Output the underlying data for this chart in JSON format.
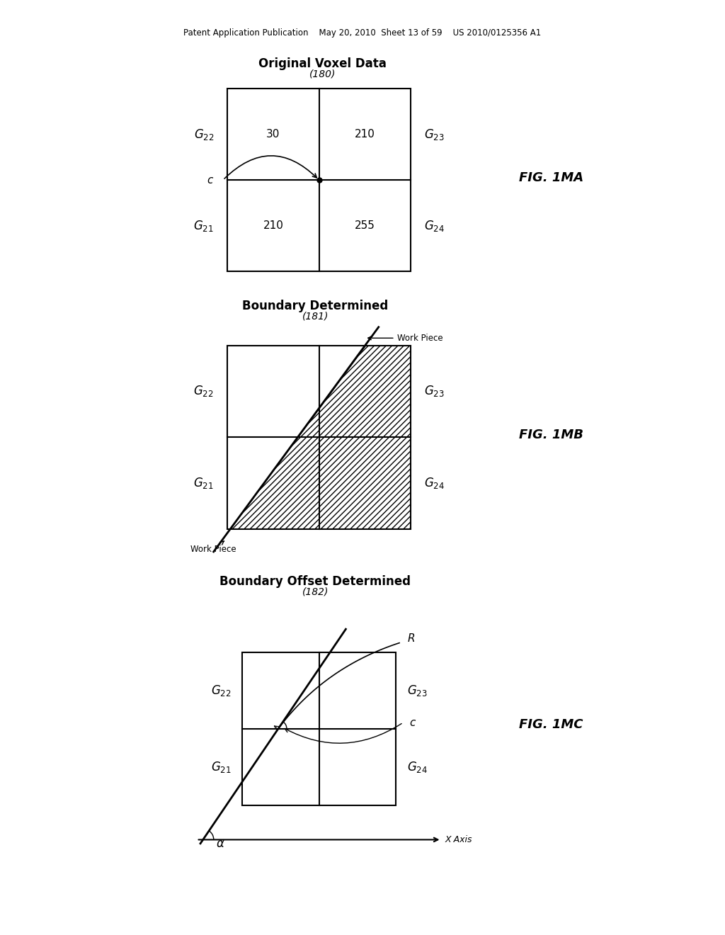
{
  "bg_color": "#ffffff",
  "header": "Patent Application Publication    May 20, 2010  Sheet 13 of 59    US 2010/0125356 A1",
  "fig1ma": {
    "title": "Original Voxel Data",
    "subtitle": "(180)",
    "fig_label": "FIG. 1MA",
    "cells": [
      {
        "label": "30",
        "col": 0,
        "row": 1
      },
      {
        "label": "210",
        "col": 1,
        "row": 1
      },
      {
        "label": "210",
        "col": 0,
        "row": 0
      },
      {
        "label": "255",
        "col": 1,
        "row": 0
      }
    ]
  },
  "fig1mb": {
    "title": "Boundary Determined",
    "subtitle": "(181)",
    "fig_label": "FIG. 1MB"
  },
  "fig1mc": {
    "title": "Boundary Offset Determined",
    "subtitle": "(182)",
    "fig_label": "FIG. 1MC"
  }
}
